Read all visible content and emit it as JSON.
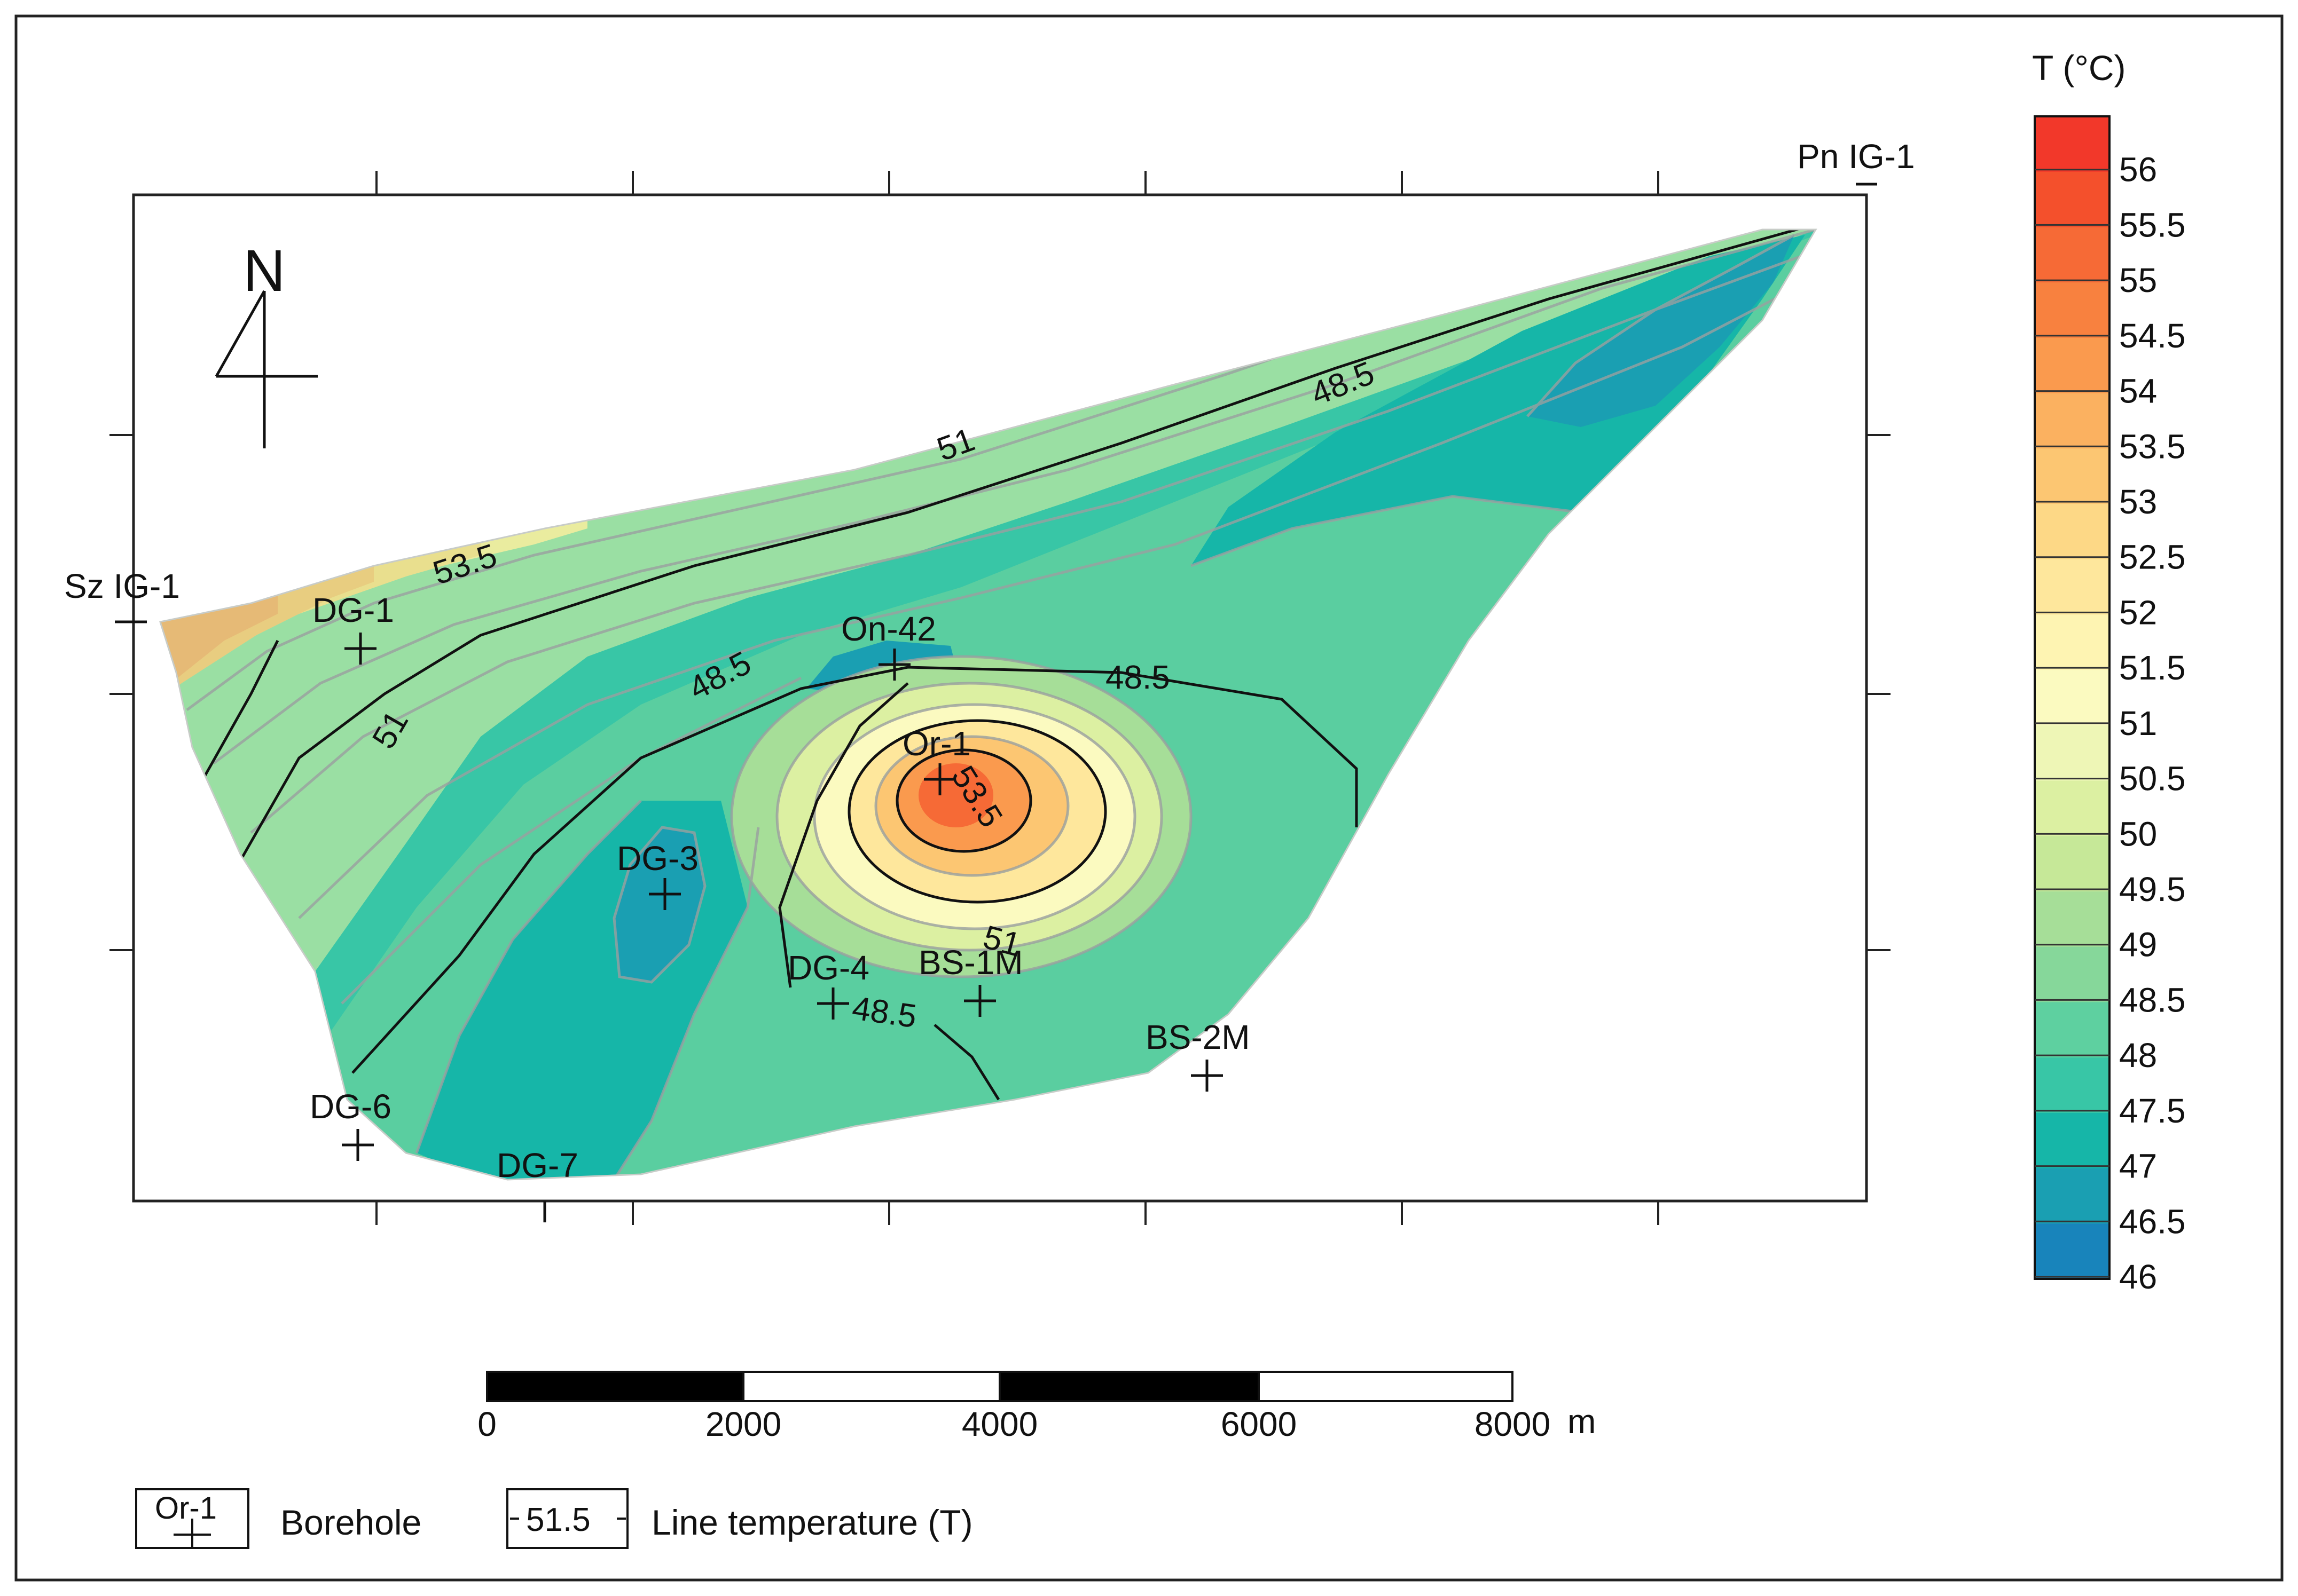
{
  "colorbar": {
    "title": "T (°C)",
    "ticks": [
      "56",
      "55.5",
      "55",
      "54.5",
      "54",
      "53.5",
      "53",
      "52.5",
      "52",
      "51.5",
      "51",
      "50.5",
      "50",
      "49.5",
      "49",
      "48.5",
      "48",
      "47.5",
      "47",
      "46.5",
      "46"
    ],
    "colors": [
      "#f2382a",
      "#f4502c",
      "#f66a36",
      "#f8813f",
      "#fa9a4e",
      "#fbb160",
      "#fcc672",
      "#fdd886",
      "#fee79c",
      "#fef4b2",
      "#fbfac0",
      "#eef6b6",
      "#dcf0a2",
      "#c6e898",
      "#a6de98",
      "#86d79a",
      "#5ed0a0",
      "#38c6a6",
      "#16b6a8",
      "#1a9fb2",
      "#1884bb"
    ]
  },
  "map": {
    "north_label": "N",
    "boreholes": [
      {
        "name": "Sz IG-1"
      },
      {
        "name": "Pn IG-1"
      },
      {
        "name": "DG-1"
      },
      {
        "name": "On-42"
      },
      {
        "name": "Or-1"
      },
      {
        "name": "DG-3"
      },
      {
        "name": "DG-4"
      },
      {
        "name": "BS-1M"
      },
      {
        "name": "BS-2M"
      },
      {
        "name": "DG-6"
      },
      {
        "name": "DG-7"
      }
    ],
    "contour_labels": [
      "53.5",
      "51",
      "48.5",
      "51",
      "48.5",
      "48.5",
      "53.5",
      "51",
      "48.5"
    ]
  },
  "scale_bar": {
    "ticks": [
      "0",
      "2000",
      "4000",
      "6000",
      "8000"
    ],
    "unit": "m"
  },
  "legend": {
    "borehole_sample": "Or-1",
    "borehole_label": "Borehole",
    "line_sample": "51.5",
    "line_label": "Line temperature (T)"
  }
}
